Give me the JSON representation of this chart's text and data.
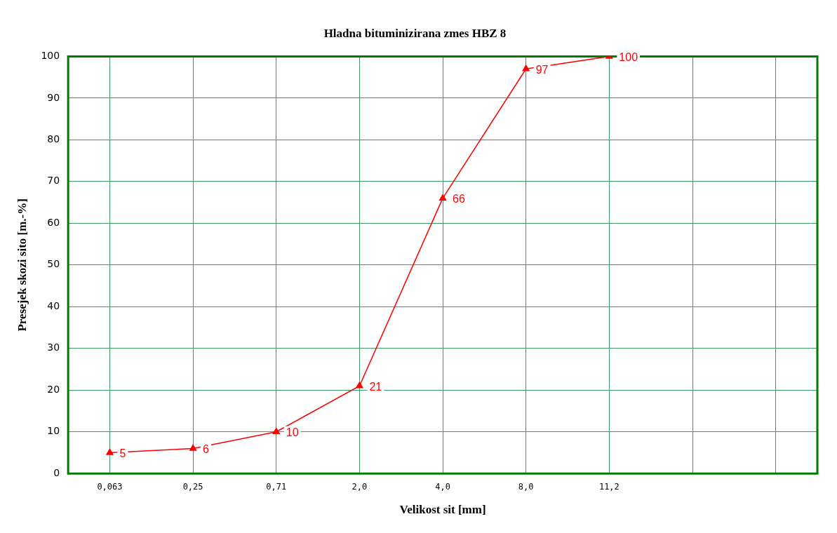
{
  "chart_data": {
    "type": "line",
    "title": "Hladna bituminizirana zmes HBZ 8",
    "xlabel": "Velikost sit [mm]",
    "ylabel": "Presejek skozi sito [m.-%]",
    "categories": [
      "0,063",
      "0,25",
      "0,71",
      "2,0",
      "4,0",
      "8,0",
      "11,2",
      null,
      null
    ],
    "values": [
      5,
      6,
      10,
      21,
      66,
      97,
      100,
      null,
      null
    ],
    "color": "#ff0000",
    "marker": "triangle",
    "data_labels": true,
    "grid": true,
    "legend": false,
    "ylim": [
      0,
      100
    ],
    "yticks": [
      0,
      10,
      20,
      30,
      40,
      50,
      60,
      70,
      80,
      90,
      100
    ]
  }
}
